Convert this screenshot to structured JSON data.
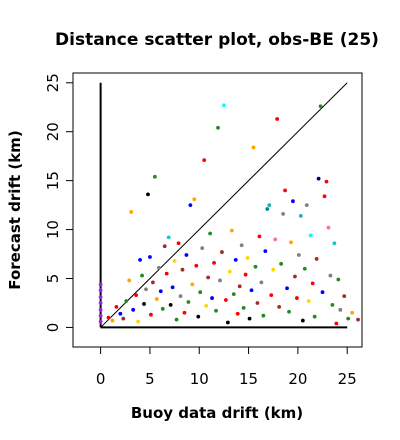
{
  "chart_data": {
    "type": "scatter",
    "title": "Distance scatter plot, obs-BE (25)",
    "xlabel": "Buoy data drift (km)",
    "ylabel": "Forecast drift (km)",
    "xlim": [
      -2.8,
      26.5
    ],
    "ylim": [
      -2,
      26
    ],
    "xticks": [
      0,
      5,
      10,
      15,
      20,
      25
    ],
    "yticks": [
      0,
      5,
      10,
      15,
      20,
      25
    ],
    "grid": false,
    "legend": "none",
    "reference_lines": [
      {
        "type": "diagonal",
        "from": [
          0,
          0
        ],
        "to": [
          25,
          25
        ]
      },
      {
        "type": "vertical",
        "from": [
          0,
          0
        ],
        "to": [
          0,
          25
        ]
      },
      {
        "type": "horizontal",
        "from": [
          0,
          0
        ],
        "to": [
          25,
          0
        ]
      }
    ],
    "points": [
      {
        "x": 0,
        "y": 0.6,
        "color": "#a020f0"
      },
      {
        "x": 0,
        "y": 1.2,
        "color": "#a020f0"
      },
      {
        "x": 0,
        "y": 1.8,
        "color": "#a020f0"
      },
      {
        "x": 0,
        "y": 2.5,
        "color": "#a020f0"
      },
      {
        "x": 0,
        "y": 3.1,
        "color": "#a020f0"
      },
      {
        "x": 0,
        "y": 3.8,
        "color": "#a020f0"
      },
      {
        "x": 0,
        "y": 4.4,
        "color": "#a020f0"
      },
      {
        "x": 0.8,
        "y": 1.0,
        "color": "#ff0000"
      },
      {
        "x": 1.2,
        "y": 0.7,
        "color": "#ffa500"
      },
      {
        "x": 1.6,
        "y": 2.1,
        "color": "#ff0000"
      },
      {
        "x": 2.0,
        "y": 1.4,
        "color": "#0000ff"
      },
      {
        "x": 2.3,
        "y": 0.9,
        "color": "#a52a2a"
      },
      {
        "x": 2.6,
        "y": 2.7,
        "color": "#228b22"
      },
      {
        "x": 2.9,
        "y": 4.8,
        "color": "#ffa500"
      },
      {
        "x": 3.1,
        "y": 11.8,
        "color": "#ffa500"
      },
      {
        "x": 3.3,
        "y": 1.8,
        "color": "#0000ff"
      },
      {
        "x": 3.6,
        "y": 3.3,
        "color": "#ff0000"
      },
      {
        "x": 3.8,
        "y": 0.6,
        "color": "#ffd700"
      },
      {
        "x": 4.0,
        "y": 6.9,
        "color": "#0000ff"
      },
      {
        "x": 4.2,
        "y": 5.3,
        "color": "#228b22"
      },
      {
        "x": 4.4,
        "y": 2.4,
        "color": "#000000"
      },
      {
        "x": 4.6,
        "y": 3.9,
        "color": "#808080"
      },
      {
        "x": 4.8,
        "y": 13.6,
        "color": "#000000"
      },
      {
        "x": 5.0,
        "y": 7.2,
        "color": "#0000ff"
      },
      {
        "x": 5.1,
        "y": 1.3,
        "color": "#ff0000"
      },
      {
        "x": 5.3,
        "y": 4.6,
        "color": "#a52a2a"
      },
      {
        "x": 5.5,
        "y": 15.4,
        "color": "#228b22"
      },
      {
        "x": 5.7,
        "y": 2.9,
        "color": "#ffa500"
      },
      {
        "x": 5.9,
        "y": 6.1,
        "color": "#808080"
      },
      {
        "x": 6.1,
        "y": 3.7,
        "color": "#0000ff"
      },
      {
        "x": 6.3,
        "y": 1.9,
        "color": "#228b22"
      },
      {
        "x": 6.5,
        "y": 8.3,
        "color": "#a52a2a"
      },
      {
        "x": 6.7,
        "y": 5.5,
        "color": "#ff0000"
      },
      {
        "x": 6.9,
        "y": 9.2,
        "color": "#00ced1"
      },
      {
        "x": 7.1,
        "y": 2.3,
        "color": "#000000"
      },
      {
        "x": 7.3,
        "y": 4.1,
        "color": "#0000ff"
      },
      {
        "x": 7.5,
        "y": 6.8,
        "color": "#ffd700"
      },
      {
        "x": 7.7,
        "y": 0.8,
        "color": "#228b22"
      },
      {
        "x": 7.9,
        "y": 8.6,
        "color": "#ff0000"
      },
      {
        "x": 8.1,
        "y": 3.2,
        "color": "#808080"
      },
      {
        "x": 8.3,
        "y": 5.9,
        "color": "#a52a2a"
      },
      {
        "x": 8.5,
        "y": 1.5,
        "color": "#ff0000"
      },
      {
        "x": 8.7,
        "y": 7.4,
        "color": "#0000ff"
      },
      {
        "x": 8.9,
        "y": 2.6,
        "color": "#228b22"
      },
      {
        "x": 9.1,
        "y": 12.5,
        "color": "#0000ff"
      },
      {
        "x": 9.3,
        "y": 4.4,
        "color": "#ffa500"
      },
      {
        "x": 9.5,
        "y": 13.1,
        "color": "#ffa500"
      },
      {
        "x": 9.7,
        "y": 6.3,
        "color": "#ff0000"
      },
      {
        "x": 9.9,
        "y": 1.1,
        "color": "#000000"
      },
      {
        "x": 10.1,
        "y": 3.6,
        "color": "#228b22"
      },
      {
        "x": 10.3,
        "y": 8.1,
        "color": "#808080"
      },
      {
        "x": 10.5,
        "y": 17.1,
        "color": "#ff0000"
      },
      {
        "x": 10.7,
        "y": 2.2,
        "color": "#ffd700"
      },
      {
        "x": 10.9,
        "y": 5.1,
        "color": "#a52a2a"
      },
      {
        "x": 11.1,
        "y": 9.6,
        "color": "#228b22"
      },
      {
        "x": 11.3,
        "y": 3.0,
        "color": "#0000ff"
      },
      {
        "x": 11.5,
        "y": 6.6,
        "color": "#ff0000"
      },
      {
        "x": 11.7,
        "y": 1.7,
        "color": "#228b22"
      },
      {
        "x": 11.9,
        "y": 20.4,
        "color": "#228b22"
      },
      {
        "x": 12.1,
        "y": 4.8,
        "color": "#808080"
      },
      {
        "x": 12.3,
        "y": 7.7,
        "color": "#a52a2a"
      },
      {
        "x": 12.5,
        "y": 22.7,
        "color": "#00ffff"
      },
      {
        "x": 12.7,
        "y": 2.8,
        "color": "#ff0000"
      },
      {
        "x": 12.9,
        "y": 0.5,
        "color": "#000000"
      },
      {
        "x": 13.1,
        "y": 5.7,
        "color": "#ffd700"
      },
      {
        "x": 13.3,
        "y": 9.9,
        "color": "#ffa500"
      },
      {
        "x": 13.5,
        "y": 3.4,
        "color": "#228b22"
      },
      {
        "x": 13.7,
        "y": 6.9,
        "color": "#0000ff"
      },
      {
        "x": 13.9,
        "y": 1.4,
        "color": "#ff0000"
      },
      {
        "x": 14.1,
        "y": 4.2,
        "color": "#a52a2a"
      },
      {
        "x": 14.3,
        "y": 8.4,
        "color": "#808080"
      },
      {
        "x": 14.5,
        "y": 2.0,
        "color": "#228b22"
      },
      {
        "x": 14.7,
        "y": 5.4,
        "color": "#ff0000"
      },
      {
        "x": 14.9,
        "y": 7.1,
        "color": "#ffd700"
      },
      {
        "x": 15.1,
        "y": 0.9,
        "color": "#000000"
      },
      {
        "x": 15.3,
        "y": 3.8,
        "color": "#0000ff"
      },
      {
        "x": 15.5,
        "y": 18.4,
        "color": "#ffa500"
      },
      {
        "x": 15.7,
        "y": 6.2,
        "color": "#228b22"
      },
      {
        "x": 15.9,
        "y": 2.5,
        "color": "#a52a2a"
      },
      {
        "x": 16.1,
        "y": 9.3,
        "color": "#ff0000"
      },
      {
        "x": 16.3,
        "y": 4.6,
        "color": "#808080"
      },
      {
        "x": 16.5,
        "y": 1.2,
        "color": "#228b22"
      },
      {
        "x": 16.7,
        "y": 7.8,
        "color": "#0000ff"
      },
      {
        "x": 16.9,
        "y": 12.1,
        "color": "#008b8b"
      },
      {
        "x": 17.1,
        "y": 12.5,
        "color": "#20b2aa"
      },
      {
        "x": 17.3,
        "y": 3.3,
        "color": "#ff0000"
      },
      {
        "x": 17.5,
        "y": 5.9,
        "color": "#ffd700"
      },
      {
        "x": 17.7,
        "y": 9.0,
        "color": "#ff69b4"
      },
      {
        "x": 17.9,
        "y": 21.3,
        "color": "#ff0000"
      },
      {
        "x": 18.1,
        "y": 2.1,
        "color": "#a52a2a"
      },
      {
        "x": 18.3,
        "y": 6.5,
        "color": "#228b22"
      },
      {
        "x": 18.5,
        "y": 11.6,
        "color": "#808080"
      },
      {
        "x": 18.7,
        "y": 14.0,
        "color": "#ff0000"
      },
      {
        "x": 18.9,
        "y": 4.0,
        "color": "#0000ff"
      },
      {
        "x": 19.1,
        "y": 1.6,
        "color": "#228b22"
      },
      {
        "x": 19.3,
        "y": 8.7,
        "color": "#ffa500"
      },
      {
        "x": 19.5,
        "y": 12.9,
        "color": "#0000ff"
      },
      {
        "x": 19.7,
        "y": 5.2,
        "color": "#a52a2a"
      },
      {
        "x": 19.9,
        "y": 3.0,
        "color": "#ff0000"
      },
      {
        "x": 20.1,
        "y": 7.4,
        "color": "#808080"
      },
      {
        "x": 20.3,
        "y": 11.4,
        "color": "#20b2aa"
      },
      {
        "x": 20.5,
        "y": 0.7,
        "color": "#000000"
      },
      {
        "x": 20.7,
        "y": 6.0,
        "color": "#228b22"
      },
      {
        "x": 20.9,
        "y": 12.5,
        "color": "#808080"
      },
      {
        "x": 21.1,
        "y": 2.7,
        "color": "#ffd700"
      },
      {
        "x": 21.3,
        "y": 9.4,
        "color": "#00ffff"
      },
      {
        "x": 21.5,
        "y": 4.5,
        "color": "#ff0000"
      },
      {
        "x": 21.7,
        "y": 1.1,
        "color": "#228b22"
      },
      {
        "x": 21.9,
        "y": 7.0,
        "color": "#a52a2a"
      },
      {
        "x": 22.1,
        "y": 15.2,
        "color": "#000080"
      },
      {
        "x": 22.3,
        "y": 22.6,
        "color": "#228b22"
      },
      {
        "x": 22.5,
        "y": 3.6,
        "color": "#0000ff"
      },
      {
        "x": 22.7,
        "y": 13.4,
        "color": "#ff0000"
      },
      {
        "x": 22.9,
        "y": 14.9,
        "color": "#ff0000"
      },
      {
        "x": 23.1,
        "y": 10.2,
        "color": "#ff69b4"
      },
      {
        "x": 23.3,
        "y": 5.3,
        "color": "#808080"
      },
      {
        "x": 23.5,
        "y": 2.3,
        "color": "#228b22"
      },
      {
        "x": 23.7,
        "y": 8.6,
        "color": "#00ced1"
      },
      {
        "x": 23.9,
        "y": 0.4,
        "color": "#ff0000"
      },
      {
        "x": 24.1,
        "y": 4.9,
        "color": "#228b22"
      },
      {
        "x": 24.3,
        "y": 1.8,
        "color": "#808080"
      },
      {
        "x": 24.7,
        "y": 3.2,
        "color": "#a52a2a"
      },
      {
        "x": 25.1,
        "y": 0.9,
        "color": "#228b22"
      },
      {
        "x": 25.5,
        "y": 1.5,
        "color": "#ffa500"
      },
      {
        "x": 26.1,
        "y": 0.8,
        "color": "#a52a2a"
      }
    ]
  }
}
